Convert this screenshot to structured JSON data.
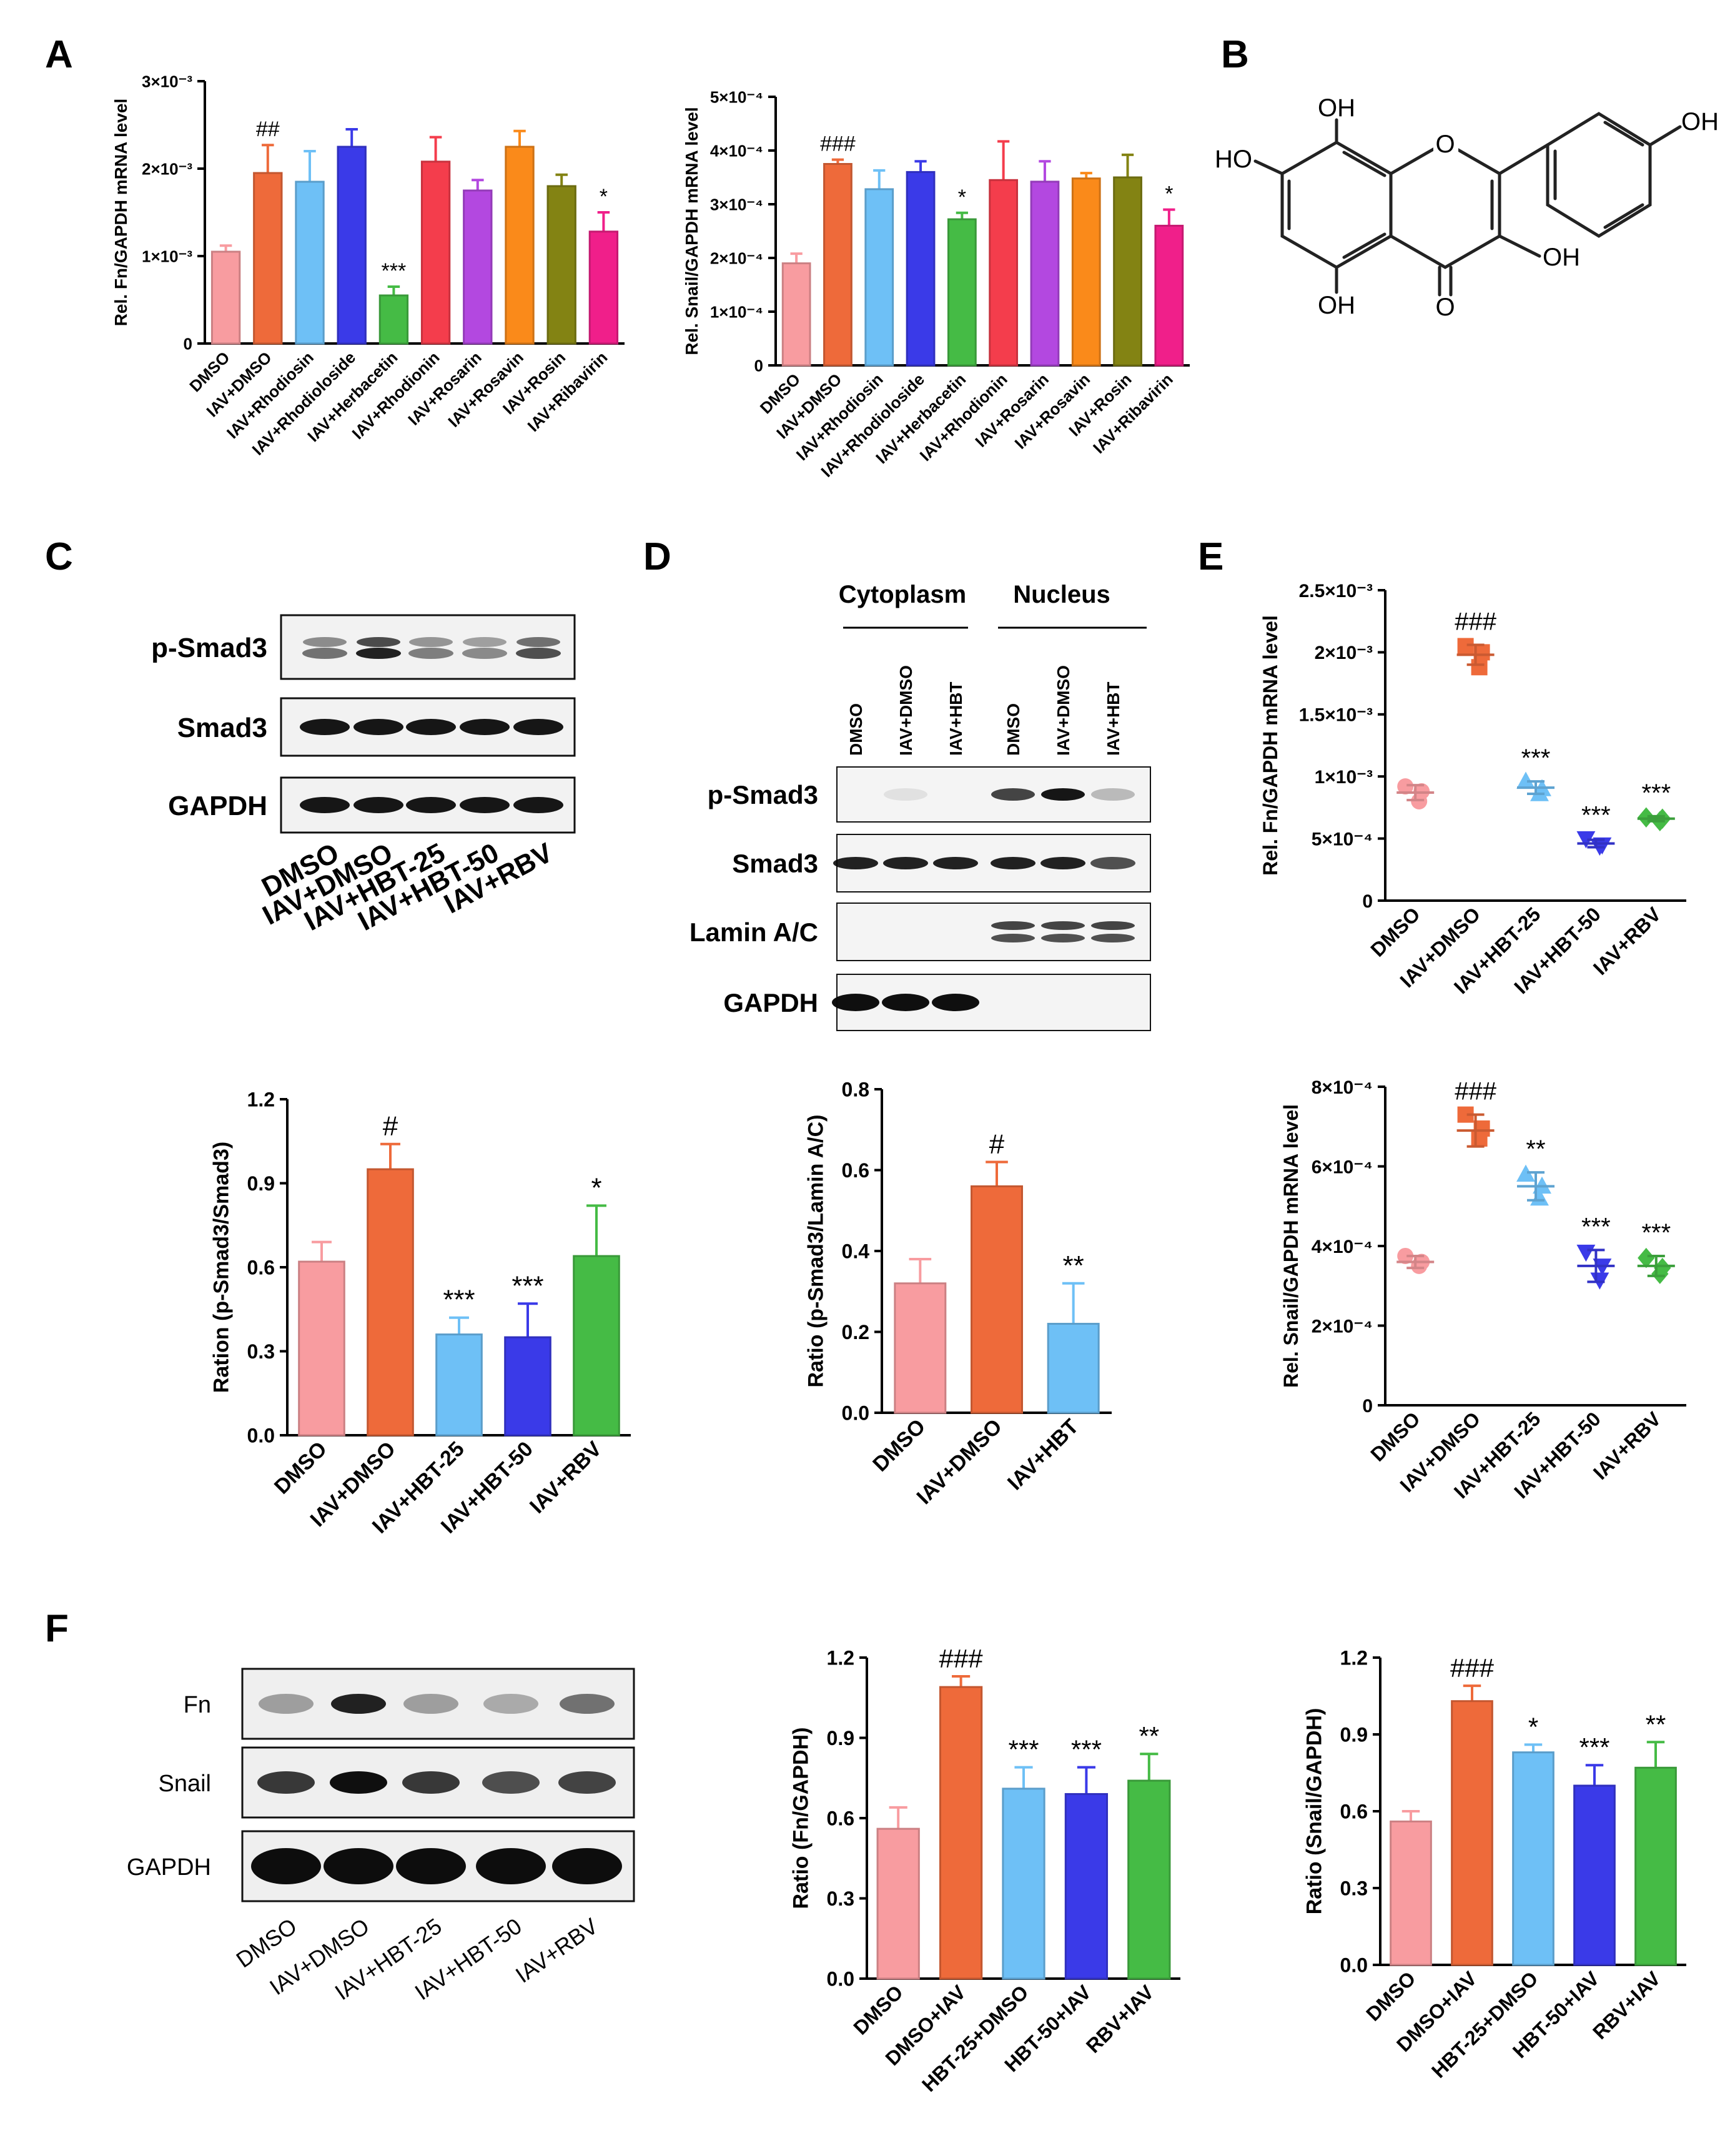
{
  "panels": {
    "A": "A",
    "B": "B",
    "C": "C",
    "D": "D",
    "E": "E",
    "F": "F"
  },
  "colors": [
    "#f89ca0",
    "#ee6a3a",
    "#6ec0f6",
    "#3a3ae8",
    "#45bb45"
  ],
  "colorsA": [
    "#f89ca0",
    "#ee6a3a",
    "#6ec0f6",
    "#3a3ae8",
    "#45bb45",
    "#f43d4c",
    "#b348e0",
    "#fa8a1a",
    "#838313",
    "#f01f8a"
  ],
  "chemB": {
    "oh_top": "OH",
    "oh_right": "OH",
    "ho_left": "HO",
    "oh_3": "OH",
    "oh_5": "OH",
    "o_ring": "O",
    "o_keto": "O"
  },
  "blotC": {
    "rows": [
      "p-Smad3",
      "Smad3",
      "GAPDH"
    ],
    "lanes": [
      "DMSO",
      "IAV+DMSO",
      "IAV+HBT-25",
      "IAV+HBT-50",
      "IAV+RBV"
    ]
  },
  "blotD": {
    "groups": [
      "Cytoplasm",
      "Nucleus"
    ],
    "lanes": [
      "DMSO",
      "IAV+DMSO",
      "IAV+HBT",
      "DMSO",
      "IAV+DMSO",
      "IAV+HBT"
    ],
    "rows": [
      "p-Smad3",
      "Smad3",
      "Lamin A/C",
      "GAPDH"
    ]
  },
  "blotF": {
    "rows": [
      "Fn",
      "Snail",
      "GAPDH"
    ],
    "lanes": [
      "DMSO",
      "IAV+DMSO",
      "IAV+HBT-25",
      "IAV+HBT-50",
      "IAV+RBV"
    ]
  },
  "chart_data": [
    {
      "id": "A1",
      "type": "bar",
      "ylabel": "Rel. Fn/GAPDH mRNA level",
      "categories": [
        "DMSO",
        "IAV+DMSO",
        "IAV+Rhodiosin",
        "IAV+Rhodioloside",
        "IAV+Herbacetin",
        "IAV+Rhodionin",
        "IAV+Rosarin",
        "IAV+Rosavin",
        "IAV+Rosin",
        "IAV+Ribavirin"
      ],
      "values": [
        1.05,
        1.95,
        1.85,
        2.25,
        0.55,
        2.08,
        1.75,
        2.25,
        1.8,
        1.28
      ],
      "errors": [
        0.07,
        0.32,
        0.35,
        0.2,
        0.1,
        0.28,
        0.12,
        0.18,
        0.13,
        0.22
      ],
      "sig": [
        "",
        "##",
        "",
        "",
        "***",
        "",
        "",
        "",
        "",
        "*"
      ],
      "ylim": [
        0,
        3
      ],
      "ticks": [
        0,
        1,
        2,
        3
      ],
      "tick_labels": [
        "0",
        "1×10⁻³",
        "2×10⁻³",
        "3×10⁻³"
      ]
    },
    {
      "id": "A2",
      "type": "bar",
      "ylabel": "Rel.  Snail/GAPDH mRNA level",
      "categories": [
        "DMSO",
        "IAV+DMSO",
        "IAV+Rhodiosin",
        "IAV+Rhodioloside",
        "IAV+Herbacetin",
        "IAV+Rhodionin",
        "IAV+Rosarin",
        "IAV+Rosavin",
        "IAV+Rosin",
        "IAV+Ribavirin"
      ],
      "values": [
        1.9,
        3.75,
        3.28,
        3.6,
        2.72,
        3.45,
        3.42,
        3.48,
        3.5,
        2.6
      ],
      "errors": [
        0.18,
        0.08,
        0.35,
        0.2,
        0.12,
        0.72,
        0.38,
        0.1,
        0.42,
        0.3
      ],
      "sig": [
        "",
        "###",
        "",
        "",
        "*",
        "",
        "",
        "",
        "",
        "*"
      ],
      "ylim": [
        0,
        5
      ],
      "ticks": [
        0,
        1,
        2,
        3,
        4,
        5
      ],
      "tick_labels": [
        "0",
        "1×10⁻⁴",
        "2×10⁻⁴",
        "3×10⁻⁴",
        "4×10⁻⁴",
        "5×10⁻⁴"
      ]
    },
    {
      "id": "C",
      "type": "bar",
      "ylabel": "Ration (p-Smad3/Smad3)",
      "categories": [
        "DMSO",
        "IAV+DMSO",
        "IAV+HBT-25",
        "IAV+HBT-50",
        "IAV+RBV"
      ],
      "values": [
        0.62,
        0.95,
        0.36,
        0.35,
        0.64
      ],
      "errors": [
        0.07,
        0.09,
        0.06,
        0.12,
        0.18
      ],
      "sig": [
        "",
        "#",
        "***",
        "***",
        "*"
      ],
      "ylim": [
        0,
        1.2
      ],
      "ticks": [
        0,
        0.3,
        0.6,
        0.9,
        1.2
      ],
      "tick_labels": [
        "0.0",
        "0.3",
        "0.6",
        "0.9",
        "1.2"
      ]
    },
    {
      "id": "D",
      "type": "bar",
      "ylabel": "Ratio (p-Smad3/Lamin A/C)",
      "categories": [
        "DMSO",
        "IAV+DMSO",
        "IAV+HBT"
      ],
      "values": [
        0.32,
        0.56,
        0.22
      ],
      "errors": [
        0.06,
        0.06,
        0.1
      ],
      "sig": [
        "",
        "#",
        "**"
      ],
      "ylim": [
        0,
        0.8
      ],
      "ticks": [
        0,
        0.2,
        0.4,
        0.6,
        0.8
      ],
      "tick_labels": [
        "0.0",
        "0.2",
        "0.4",
        "0.6",
        "0.8"
      ]
    },
    {
      "id": "E1",
      "type": "scatter",
      "ylabel": "Rel.  Fn/GAPDH mRNA level",
      "categories": [
        "DMSO",
        "IAV+DMSO",
        "IAV+HBT-25",
        "IAV+HBT-50",
        "IAV+RBV"
      ],
      "points": [
        [
          0.92,
          0.88,
          0.8
        ],
        [
          2.05,
          2.0,
          1.88
        ],
        [
          0.96,
          0.9,
          0.86
        ],
        [
          0.5,
          0.45,
          0.44
        ],
        [
          0.67,
          0.66,
          0.64
        ]
      ],
      "means": [
        0.87,
        1.98,
        0.91,
        0.46,
        0.66
      ],
      "sds": [
        0.06,
        0.08,
        0.05,
        0.03,
        0.02
      ],
      "markers": [
        "circle",
        "square",
        "triangle",
        "triangle-down",
        "diamond"
      ],
      "sig": [
        "",
        "###",
        "***",
        "***",
        "***"
      ],
      "ylim": [
        0,
        2.5
      ],
      "ticks": [
        0,
        0.5,
        1,
        1.5,
        2,
        2.5
      ],
      "tick_labels": [
        "0",
        "5×10⁻⁴",
        "1×10⁻³",
        "1.5×10⁻³",
        "2×10⁻³",
        "2.5×10⁻³"
      ]
    },
    {
      "id": "E2",
      "type": "scatter",
      "ylabel": "Rel.  Snail/GAPDH mRNA level",
      "categories": [
        "DMSO",
        "IAV+DMSO",
        "IAV+HBT-25",
        "IAV+HBT-50",
        "IAV+RBV"
      ],
      "points": [
        [
          3.75,
          3.6,
          3.5
        ],
        [
          7.3,
          6.95,
          6.7
        ],
        [
          5.8,
          5.5,
          5.2
        ],
        [
          3.85,
          3.5,
          3.15
        ],
        [
          3.7,
          3.45,
          3.3
        ]
      ],
      "means": [
        3.6,
        6.9,
        5.5,
        3.5,
        3.5
      ],
      "sds": [
        0.15,
        0.4,
        0.35,
        0.4,
        0.25
      ],
      "markers": [
        "circle",
        "square",
        "triangle",
        "triangle-down",
        "diamond"
      ],
      "sig": [
        "",
        "###",
        "**",
        "***",
        "***"
      ],
      "ylim": [
        0,
        8
      ],
      "ticks": [
        0,
        2,
        4,
        6,
        8
      ],
      "tick_labels": [
        "0",
        "2×10⁻⁴",
        "4×10⁻⁴",
        "6×10⁻⁴",
        "8×10⁻⁴"
      ]
    },
    {
      "id": "F1",
      "type": "bar",
      "ylabel": "Ratio (Fn/GAPDH)",
      "categories": [
        "DMSO",
        "DMSO+IAV",
        "HBT-25+DMSO",
        "HBT-50+IAV",
        "RBV+IAV"
      ],
      "values": [
        0.56,
        1.09,
        0.71,
        0.69,
        0.74
      ],
      "errors": [
        0.08,
        0.04,
        0.08,
        0.1,
        0.1
      ],
      "sig": [
        "",
        "###",
        "***",
        "***",
        "**"
      ],
      "ylim": [
        0,
        1.2
      ],
      "ticks": [
        0,
        0.3,
        0.6,
        0.9,
        1.2
      ],
      "tick_labels": [
        "0.0",
        "0.3",
        "0.6",
        "0.9",
        "1.2"
      ]
    },
    {
      "id": "F2",
      "type": "bar",
      "ylabel": "Ratio (Snail/GAPDH)",
      "categories": [
        "DMSO",
        "DMSO+IAV",
        "HBT-25+DMSO",
        "HBT-50+IAV",
        "RBV+IAV"
      ],
      "values": [
        0.56,
        1.03,
        0.83,
        0.7,
        0.77
      ],
      "errors": [
        0.04,
        0.06,
        0.03,
        0.08,
        0.1
      ],
      "sig": [
        "",
        "###",
        "*",
        "***",
        "**"
      ],
      "ylim": [
        0,
        1.2
      ],
      "ticks": [
        0,
        0.3,
        0.6,
        0.9,
        1.2
      ],
      "tick_labels": [
        "0.0",
        "0.3",
        "0.6",
        "0.9",
        "1.2"
      ]
    }
  ]
}
